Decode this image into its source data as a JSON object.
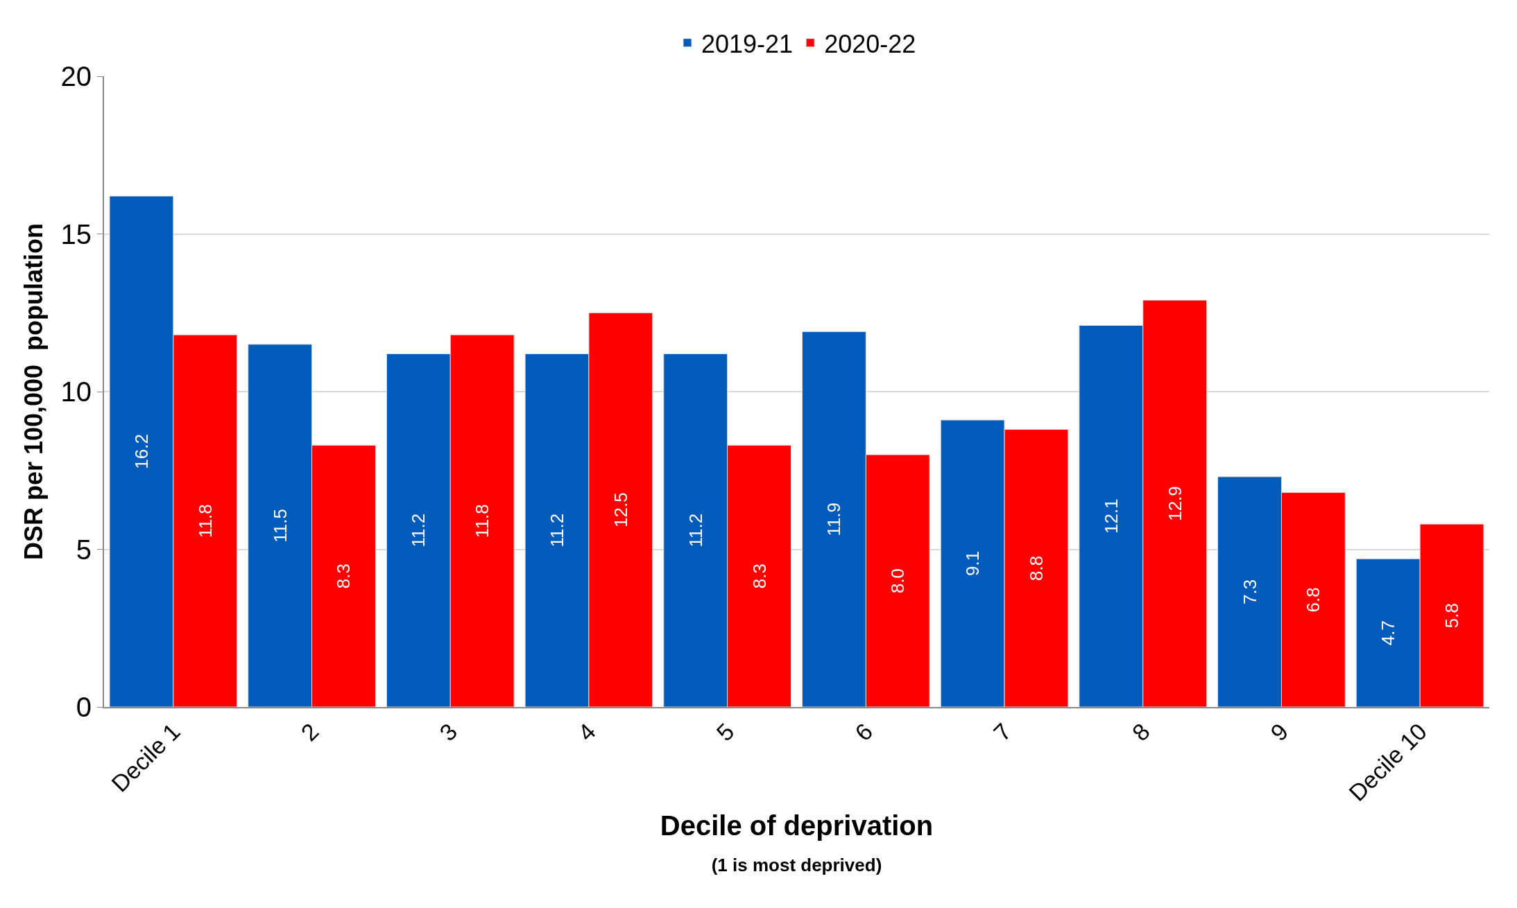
{
  "chart_data": {
    "type": "bar",
    "xlabel": "Decile of deprivation\n(1 is most deprived)",
    "ylabel": "DSR per 100,000  population",
    "categories": [
      "Decile 1",
      "2",
      "3",
      "4",
      "5",
      "6",
      "7",
      "8",
      "9",
      "Decile 10"
    ],
    "series": [
      {
        "name": "2019-21",
        "color": "#005bbb",
        "values": [
          16.2,
          11.5,
          11.2,
          11.2,
          11.2,
          11.9,
          9.1,
          12.1,
          7.3,
          4.7
        ],
        "value_labels": [
          "16.2",
          "11.5",
          "11.2",
          "11.2",
          "11.2",
          "11.9",
          "9.1",
          "12.1",
          "7.3",
          "4.7"
        ]
      },
      {
        "name": "2020-22",
        "color": "#ff0000",
        "values": [
          11.8,
          8.3,
          11.8,
          12.5,
          8.3,
          8.0,
          8.8,
          12.9,
          6.8,
          5.8
        ],
        "value_labels": [
          "11.8",
          "8.3",
          "11.8",
          "12.5",
          "8.3",
          "8.0",
          "8.8",
          "12.9",
          "6.8",
          "5.8"
        ]
      }
    ],
    "ylim": [
      0,
      20
    ],
    "yticks": [
      0,
      5,
      10,
      15,
      20
    ],
    "grid": "y",
    "legend": "top"
  }
}
